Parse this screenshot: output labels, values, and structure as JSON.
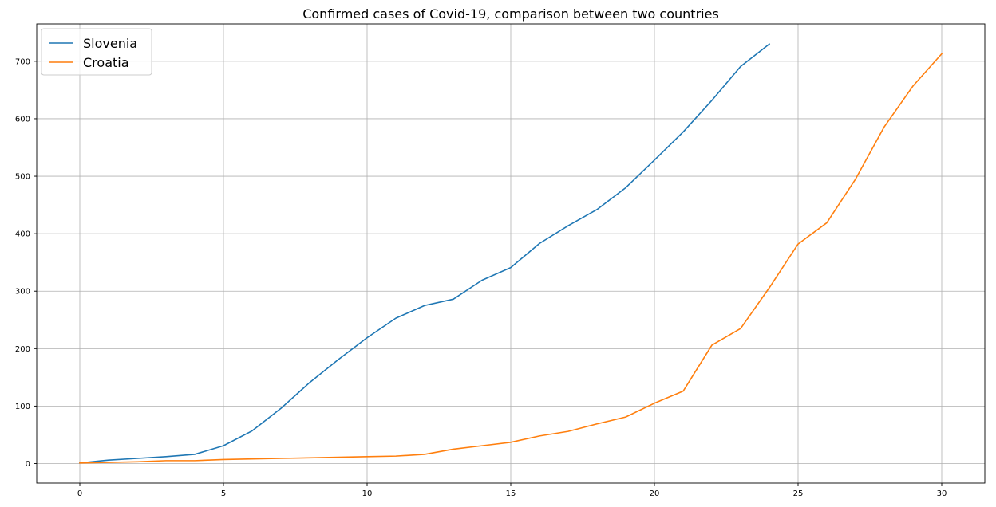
{
  "chart_data": {
    "type": "line",
    "title": "Confirmed cases of Covid-19, comparison between two countries",
    "xlabel": "",
    "ylabel": "",
    "xlim": [
      -1.5,
      31.5
    ],
    "ylim": [
      -34,
      765
    ],
    "xticks": [
      0,
      5,
      10,
      15,
      20,
      25,
      30
    ],
    "yticks": [
      0,
      100,
      200,
      300,
      400,
      500,
      600,
      700
    ],
    "grid": true,
    "legend_position": "upper-left",
    "series": [
      {
        "name": "Slovenia",
        "color": "#1f77b4",
        "x": [
          0,
          1,
          2,
          3,
          4,
          5,
          6,
          7,
          8,
          9,
          10,
          11,
          12,
          13,
          14,
          15,
          16,
          17,
          18,
          19,
          20,
          21,
          22,
          23,
          24
        ],
        "y": [
          1,
          6,
          9,
          12,
          16,
          31,
          57,
          96,
          141,
          181,
          219,
          253,
          275,
          286,
          319,
          341,
          383,
          414,
          442,
          480,
          528,
          577,
          632,
          691,
          730
        ]
      },
      {
        "name": "Croatia",
        "color": "#ff7f0e",
        "x": [
          0,
          1,
          2,
          3,
          4,
          5,
          6,
          7,
          8,
          9,
          10,
          11,
          12,
          13,
          14,
          15,
          16,
          17,
          18,
          19,
          20,
          21,
          22,
          23,
          24,
          25,
          26,
          27,
          28,
          29,
          30
        ],
        "y": [
          1,
          2,
          3,
          5,
          5,
          7,
          8,
          9,
          10,
          11,
          12,
          13,
          16,
          25,
          31,
          37,
          48,
          56,
          69,
          81,
          105,
          126,
          206,
          235,
          306,
          382,
          419,
          495,
          586,
          657,
          713
        ]
      }
    ]
  }
}
